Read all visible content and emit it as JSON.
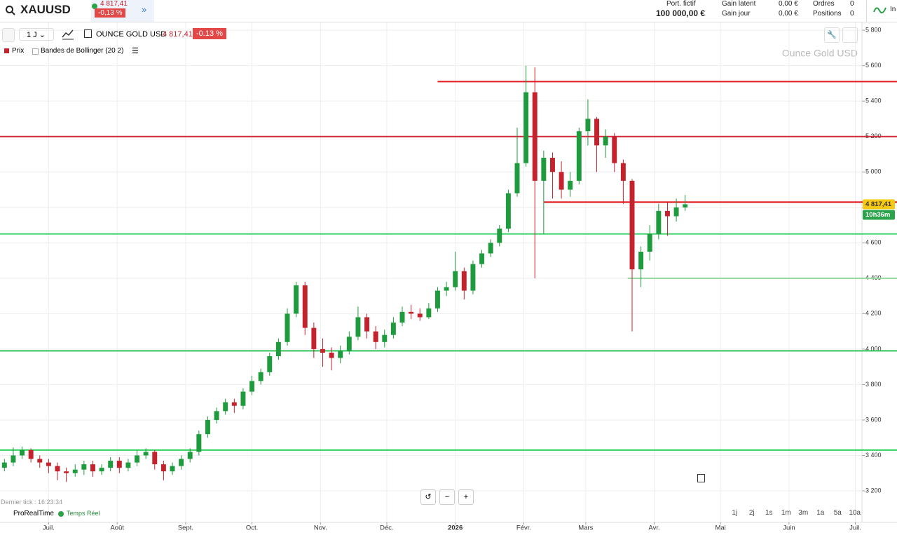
{
  "header": {
    "symbol": "XAUUSD",
    "price": "4 817,41",
    "change": "-0,13 %",
    "portfolio_label": "Port. fictif",
    "portfolio_value": "100 000,00 €",
    "latent_label": "Gain latent",
    "latent_value": "0,00 €",
    "day_label": "Gain jour",
    "day_value": "0,00 €",
    "orders_label": "Ordres",
    "orders_value": "0",
    "positions_label": "Positions",
    "positions_value": "0",
    "extra": "In"
  },
  "toolbar": {
    "period": "1 J",
    "instrument": "OUNCE GOLD USD",
    "price": "4 817,41",
    "change": "-0.13 %",
    "legend_price": "Prix",
    "legend_bollinger": "Bandes de Bollinger (20 2)"
  },
  "footer": {
    "last_tick": "Dernier tick : 16:23:34",
    "brand": "ProRealTime",
    "realtime": "Temps Réel",
    "ranges": [
      "1j",
      "2j",
      "1s",
      "1m",
      "3m",
      "1a",
      "5a",
      "10a"
    ]
  },
  "chart_data": {
    "type": "candlestick",
    "watermark": "Ounce Gold USD",
    "up_color": "#1e9b3c",
    "down_color": "#c4222c",
    "grid": true,
    "xlim": [
      -22,
      368
    ],
    "xticks": [
      {
        "value": 0,
        "label": "Juil."
      },
      {
        "value": 31,
        "label": "Août"
      },
      {
        "value": 62,
        "label": "Sept."
      },
      {
        "value": 92,
        "label": "Oct."
      },
      {
        "value": 123,
        "label": "Nov."
      },
      {
        "value": 153,
        "label": "Déc."
      },
      {
        "value": 184,
        "label": "2026"
      },
      {
        "value": 215,
        "label": "Févr."
      },
      {
        "value": 243,
        "label": "Mars"
      },
      {
        "value": 274,
        "label": "Avr."
      },
      {
        "value": 304,
        "label": "Mai"
      },
      {
        "value": 335,
        "label": "Juin"
      },
      {
        "value": 365,
        "label": "Juil."
      }
    ],
    "ylim": [
      3022,
      5844
    ],
    "yticks": [
      {
        "value": 3200,
        "label": "3 200"
      },
      {
        "value": 3400,
        "label": "3 400"
      },
      {
        "value": 3600,
        "label": "3 600"
      },
      {
        "value": 3800,
        "label": "3 800"
      },
      {
        "value": 4000,
        "label": "4 000"
      },
      {
        "value": 4200,
        "label": "4 200"
      },
      {
        "value": 4400,
        "label": "4 400"
      },
      {
        "value": 4600,
        "label": "4 600"
      },
      {
        "value": 4800,
        "label": "4 800"
      },
      {
        "value": 5000,
        "label": "5 000"
      },
      {
        "value": 5200,
        "label": "5 200"
      },
      {
        "value": 5400,
        "label": "5 400"
      },
      {
        "value": 5600,
        "label": "5 600"
      },
      {
        "value": 5800,
        "label": "5 800"
      }
    ],
    "x": [
      -20,
      -16,
      -12,
      -8,
      -4,
      0,
      4,
      8,
      12,
      16,
      20,
      24,
      28,
      32,
      36,
      40,
      44,
      48,
      52,
      56,
      60,
      64,
      68,
      72,
      76,
      80,
      84,
      88,
      92,
      96,
      100,
      104,
      108,
      112,
      116,
      120,
      124,
      128,
      132,
      136,
      140,
      144,
      148,
      152,
      156,
      160,
      164,
      168,
      172,
      176,
      180,
      184,
      188,
      192,
      196,
      200,
      204,
      208,
      212,
      216,
      220,
      224,
      228,
      232,
      236,
      240,
      244,
      248,
      252,
      256,
      260,
      264,
      268,
      272,
      276,
      280,
      284,
      288
    ],
    "open": [
      3330,
      3360,
      3400,
      3430,
      3380,
      3360,
      3340,
      3310,
      3300,
      3320,
      3350,
      3310,
      3330,
      3370,
      3330,
      3360,
      3400,
      3420,
      3350,
      3310,
      3340,
      3380,
      3420,
      3520,
      3600,
      3650,
      3700,
      3680,
      3760,
      3820,
      3870,
      3960,
      4040,
      4200,
      4360,
      4120,
      4000,
      3980,
      3950,
      3990,
      4070,
      4180,
      4100,
      4040,
      4080,
      4150,
      4210,
      4200,
      4180,
      4230,
      4330,
      4350,
      4440,
      4330,
      4480,
      4540,
      4600,
      4680,
      4880,
      5050,
      5450,
      4950,
      5080,
      5000,
      4900,
      4950,
      5230,
      5300,
      5150,
      5200,
      5050,
      4950,
      4450,
      4550,
      4650,
      4780,
      4750,
      4800
    ],
    "high": [
      3380,
      3445,
      3450,
      3440,
      3400,
      3380,
      3360,
      3330,
      3350,
      3370,
      3370,
      3350,
      3390,
      3390,
      3380,
      3430,
      3440,
      3430,
      3370,
      3360,
      3400,
      3440,
      3540,
      3620,
      3670,
      3720,
      3720,
      3780,
      3850,
      3890,
      3980,
      4060,
      4230,
      4380,
      4380,
      4150,
      4060,
      4010,
      4020,
      4100,
      4240,
      4200,
      4130,
      4110,
      4180,
      4240,
      4250,
      4230,
      4260,
      4350,
      4380,
      4550,
      4460,
      4500,
      4560,
      4620,
      4700,
      4900,
      5250,
      5600,
      5590,
      5120,
      5110,
      5060,
      5000,
      5250,
      5410,
      5310,
      5240,
      5220,
      5070,
      4960,
      4580,
      4700,
      4820,
      4830,
      4850,
      4870
    ],
    "low": [
      3310,
      3340,
      3380,
      3360,
      3330,
      3300,
      3260,
      3250,
      3280,
      3290,
      3280,
      3290,
      3310,
      3300,
      3310,
      3340,
      3380,
      3320,
      3260,
      3290,
      3320,
      3360,
      3400,
      3500,
      3580,
      3630,
      3640,
      3660,
      3740,
      3800,
      3850,
      3940,
      4020,
      4180,
      4080,
      3950,
      3900,
      3880,
      3920,
      3970,
      4050,
      4060,
      4000,
      4010,
      4060,
      4130,
      4170,
      4160,
      4170,
      4210,
      4300,
      4330,
      4280,
      4310,
      4460,
      4520,
      4580,
      4660,
      4860,
      5030,
      4400,
      4650,
      4850,
      4850,
      4860,
      4930,
      5150,
      5000,
      5080,
      5000,
      4820,
      4100,
      4350,
      4500,
      4620,
      4640,
      4720,
      4780
    ],
    "close": [
      3360,
      3400,
      3430,
      3380,
      3360,
      3340,
      3310,
      3300,
      3320,
      3350,
      3310,
      3330,
      3370,
      3330,
      3360,
      3400,
      3420,
      3350,
      3310,
      3340,
      3380,
      3420,
      3520,
      3600,
      3650,
      3700,
      3680,
      3760,
      3820,
      3870,
      3960,
      4040,
      4200,
      4360,
      4120,
      4000,
      3980,
      3950,
      3990,
      4070,
      4180,
      4100,
      4040,
      4080,
      4150,
      4210,
      4200,
      4180,
      4230,
      4330,
      4350,
      4440,
      4330,
      4480,
      4540,
      4600,
      4680,
      4880,
      5050,
      5450,
      4950,
      5080,
      5000,
      4900,
      4950,
      5230,
      5300,
      5150,
      5200,
      5050,
      4950,
      4450,
      4550,
      4650,
      4780,
      4750,
      4800,
      4817.41
    ],
    "levels": [
      {
        "value": 5510,
        "color": "#e3181c",
        "from": 176
      },
      {
        "value": 5200,
        "color": "#d42a3c"
      },
      {
        "value": 4830,
        "color": "#e3181c",
        "from": 224
      },
      {
        "value": 4650,
        "color": "#3ccf6a"
      },
      {
        "value": 4400,
        "color": "#8fd99e",
        "from": 262
      },
      {
        "value": 3990,
        "color": "#2fc45a"
      },
      {
        "value": 3430,
        "color": "#2ed158"
      }
    ],
    "last_price": {
      "value": 4817.41,
      "label": "4 817,41"
    },
    "countdown": "10h36m"
  }
}
